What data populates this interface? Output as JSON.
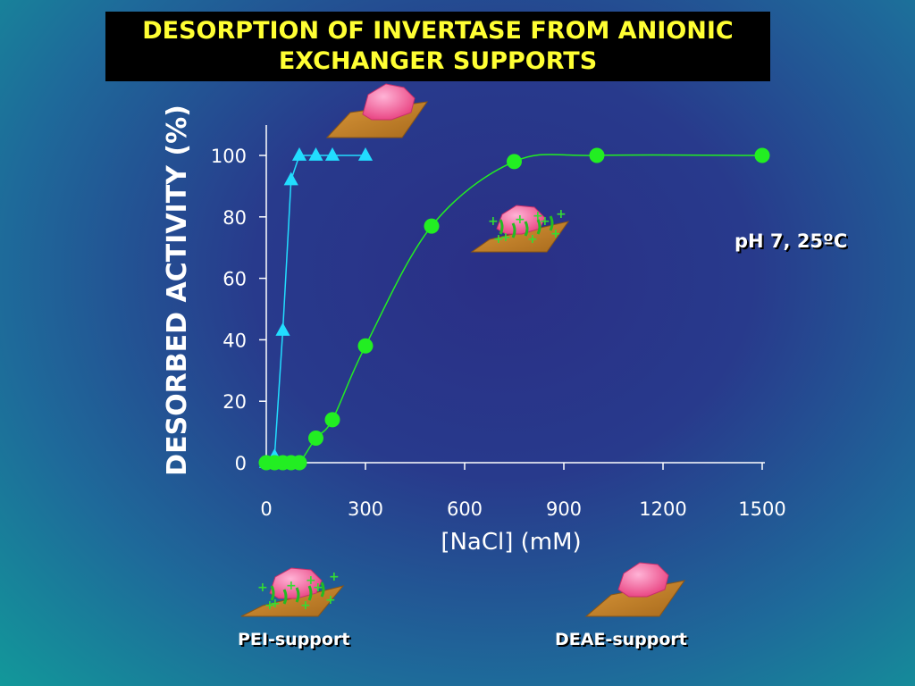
{
  "title": {
    "line1": "DESORPTION OF INVERTASE FROM ANIONIC",
    "line2": "EXCHANGER SUPPORTS"
  },
  "condition_note": "pH 7, 25ºC",
  "legend": {
    "pei": "PEI-support",
    "deae": "DEAE-support"
  },
  "colors": {
    "title_text": "#ffff33",
    "title_background": "#000000",
    "deae_series": "#22ddff",
    "pei_series": "#22ee22",
    "enzyme": "#ff6fae",
    "support": "#c8862a"
  },
  "chart_data": {
    "type": "line",
    "xlabel": "[NaCl] (mM)",
    "ylabel": "DESORBED ACTIVITY (%)",
    "x_ticks": [
      0,
      300,
      600,
      900,
      1200,
      1500
    ],
    "y_ticks": [
      0,
      20,
      40,
      60,
      80,
      100
    ],
    "xlim": [
      0,
      1500
    ],
    "ylim": [
      0,
      100
    ],
    "grid": false,
    "series": [
      {
        "support": "DEAE-support",
        "marker": "triangle",
        "color": "#22ddff",
        "x": [
          0,
          25,
          50,
          75,
          100,
          150,
          200,
          300
        ],
        "y": [
          0,
          2,
          43,
          92,
          100,
          100,
          100,
          100
        ]
      },
      {
        "support": "PEI-support",
        "marker": "circle",
        "color": "#22ee22",
        "x": [
          0,
          25,
          50,
          75,
          100,
          150,
          200,
          300,
          500,
          750,
          1000,
          1500
        ],
        "y": [
          0,
          0,
          0,
          0,
          0,
          8,
          14,
          38,
          77,
          98,
          100,
          100
        ]
      }
    ]
  }
}
